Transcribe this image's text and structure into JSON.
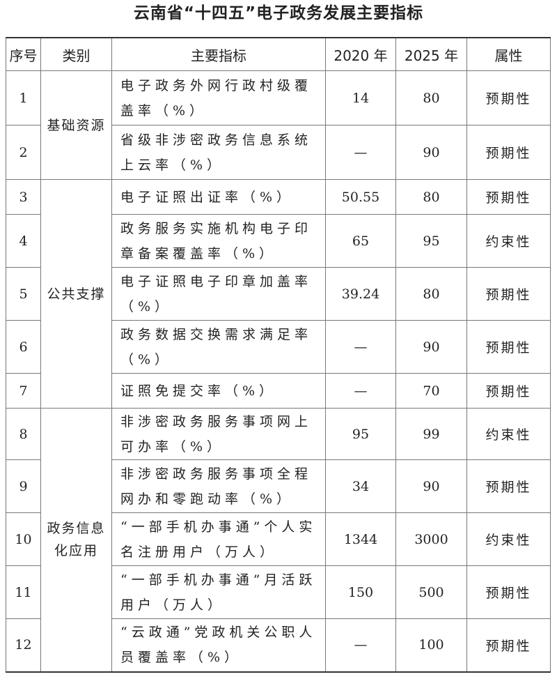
{
  "title": "云南省“十四五”电子政务发展主要指标",
  "headers": [
    "序号",
    "类别",
    "主要指标",
    "2020 年",
    "2025 年",
    "属性"
  ],
  "categories": [
    "基础资源",
    "公共支撑",
    "政务信息化应用"
  ],
  "rows": [
    {
      "no": "1",
      "indicator": "电子政务外网行政村级覆盖率（%）",
      "y2020": "14",
      "y2025": "80",
      "attr": "预期性"
    },
    {
      "no": "2",
      "indicator": "省级非涉密政务信息系统上云率（%）",
      "y2020": "—",
      "y2025": "90",
      "attr": "预期性"
    },
    {
      "no": "3",
      "indicator": "电子证照出证率（%）",
      "y2020": "50.55",
      "y2025": "80",
      "attr": "预期性"
    },
    {
      "no": "4",
      "indicator": "政务服务实施机构电子印章备案覆盖率（%）",
      "y2020": "65",
      "y2025": "95",
      "attr": "约束性"
    },
    {
      "no": "5",
      "indicator": "电子证照电子印章加盖率（%）",
      "y2020": "39.24",
      "y2025": "80",
      "attr": "预期性"
    },
    {
      "no": "6",
      "indicator": "政务数据交换需求满足率（%）",
      "y2020": "—",
      "y2025": "90",
      "attr": "预期性"
    },
    {
      "no": "7",
      "indicator": "证照免提交率（%）",
      "y2020": "—",
      "y2025": "70",
      "attr": "预期性"
    },
    {
      "no": "8",
      "indicator": "非涉密政务服务事项网上可办率（%）",
      "y2020": "95",
      "y2025": "99",
      "attr": "约束性"
    },
    {
      "no": "9",
      "indicator": "非涉密政务服务事项全程网办和零跑动率（%）",
      "y2020": "34",
      "y2025": "90",
      "attr": "预期性"
    },
    {
      "no": "10",
      "indicator": "“一部手机办事通”个人实名注册用户（万人）",
      "y2020": "1344",
      "y2025": "3000",
      "attr": "约束性"
    },
    {
      "no": "11",
      "indicator": "“一部手机办事通”月活跃用户（万人）",
      "y2020": "150",
      "y2025": "500",
      "attr": "预期性"
    },
    {
      "no": "12",
      "indicator": "“云政通”党政机关公职人员覆盖率（%）",
      "y2020": "—",
      "y2025": "100",
      "attr": "预期性"
    }
  ]
}
